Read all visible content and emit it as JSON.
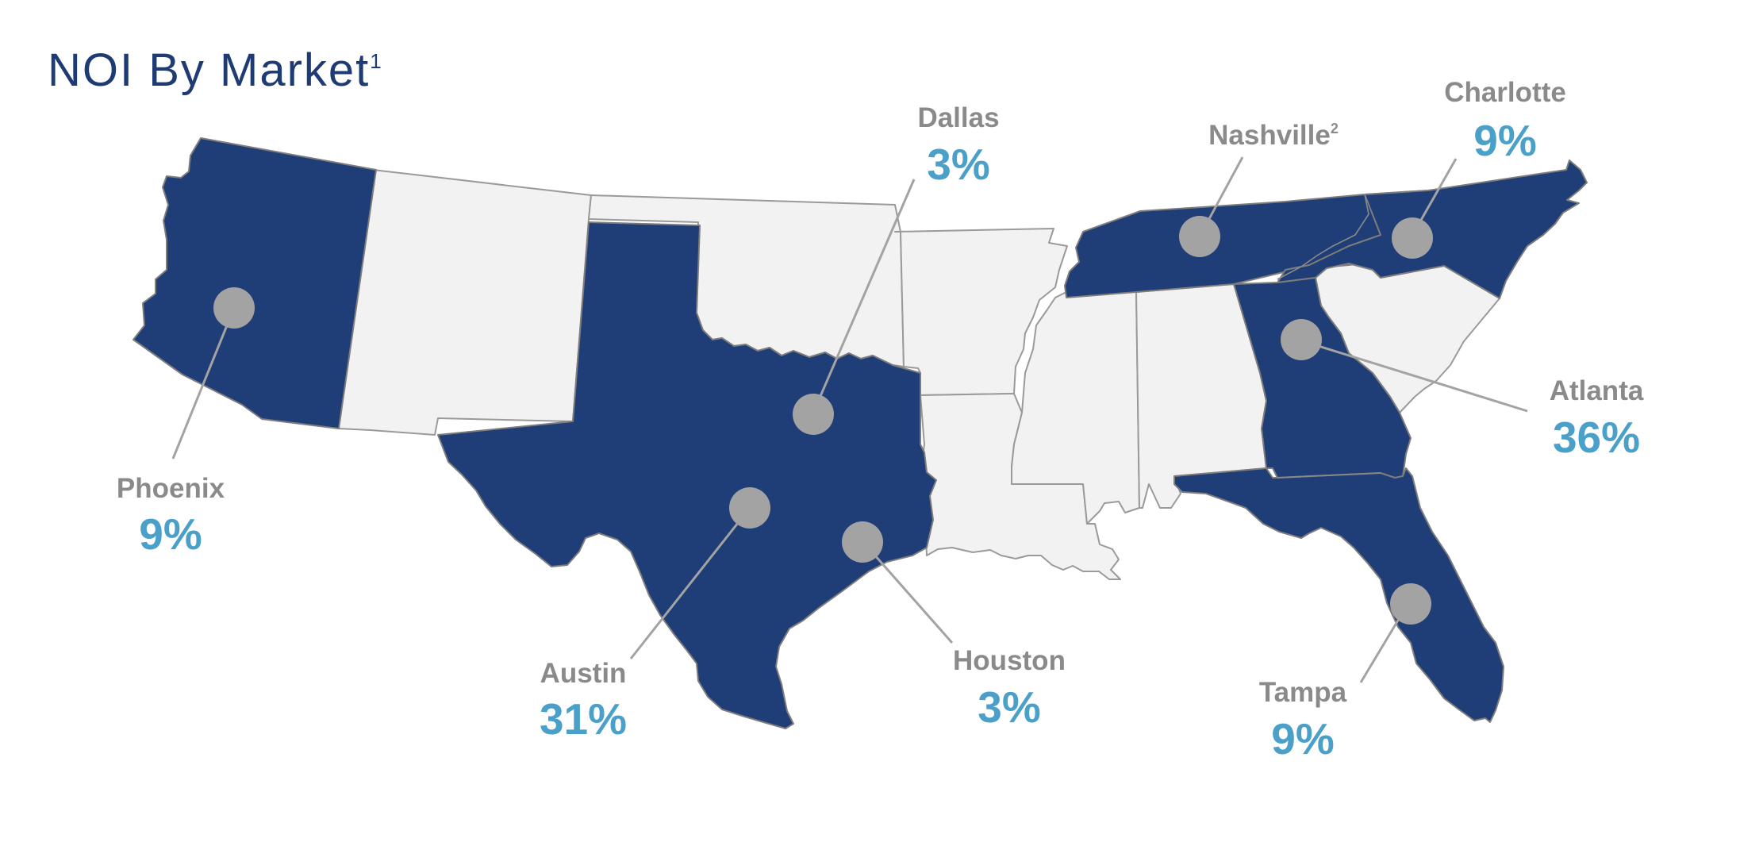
{
  "title": {
    "text": "NOI By Market",
    "footnote": "1"
  },
  "colors": {
    "active_state": "#1f3d76",
    "inactive_state": "#f2f2f2",
    "label": "#8a8a8a",
    "percent": "#4aa0c8",
    "marker": "#a3a3a3"
  },
  "markets": [
    {
      "id": "phoenix",
      "name": "Phoenix",
      "footnote": "",
      "share": "9%"
    },
    {
      "id": "austin",
      "name": "Austin",
      "footnote": "",
      "share": "31%"
    },
    {
      "id": "dallas",
      "name": "Dallas",
      "footnote": "",
      "share": "3%"
    },
    {
      "id": "houston",
      "name": "Houston",
      "footnote": "",
      "share": "3%"
    },
    {
      "id": "nashville",
      "name": "Nashville",
      "footnote": "2",
      "share": ""
    },
    {
      "id": "charlotte",
      "name": "Charlotte",
      "footnote": "",
      "share": "9%"
    },
    {
      "id": "atlanta",
      "name": "Atlanta",
      "footnote": "",
      "share": "36%"
    },
    {
      "id": "tampa",
      "name": "Tampa",
      "footnote": "",
      "share": "9%"
    }
  ]
}
